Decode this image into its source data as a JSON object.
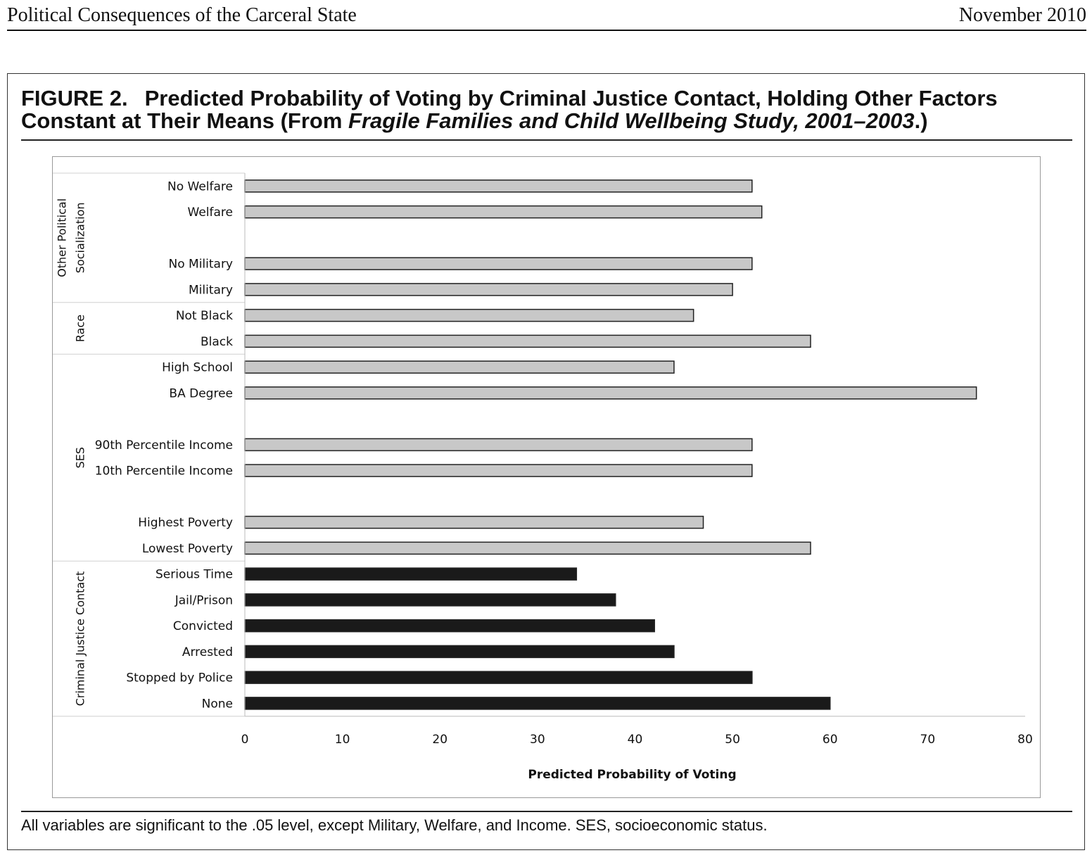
{
  "header": {
    "running_title": "Political Consequences of the Carceral State",
    "date": "November 2010"
  },
  "figure": {
    "number": "FIGURE 2.",
    "title_part1": "Predicted Probability of Voting by Criminal Justice Contact, Holding Other Factors Constant at Their Means (From ",
    "title_italic": "Fragile Families and Child Wellbeing Study, 2001–2003",
    "title_part2": ".)",
    "caption": "All variables are significant to the .05 level, except Military, Welfare, and Income. SES, socioeconomic status."
  },
  "colors": {
    "light_bar": "#c8c8c8",
    "dark_bar": "#1a1a1a",
    "bar_outline": "#222222"
  },
  "chart_data": {
    "type": "bar",
    "orientation": "horizontal",
    "xlabel": "Predicted Probability of Voting",
    "xlim": [
      0,
      80
    ],
    "xticks": [
      0,
      10,
      20,
      30,
      40,
      50,
      60,
      70,
      80
    ],
    "grid": false,
    "groups": [
      {
        "name": "Other Political Socialization",
        "label_lines": [
          "Other Political",
          "Socialization"
        ],
        "rows": [
          {
            "label": "No Welfare",
            "value": 52,
            "style": "light"
          },
          {
            "label": "Welfare",
            "value": 53,
            "style": "light"
          },
          {
            "label": "",
            "value": null,
            "style": "gap"
          },
          {
            "label": "No Military",
            "value": 52,
            "style": "light"
          },
          {
            "label": "Military",
            "value": 50,
            "style": "light"
          }
        ]
      },
      {
        "name": "Race",
        "label_lines": [
          "Race"
        ],
        "rows": [
          {
            "label": "Not Black",
            "value": 46,
            "style": "light"
          },
          {
            "label": "Black",
            "value": 58,
            "style": "light"
          }
        ]
      },
      {
        "name": "SES",
        "label_lines": [
          "SES"
        ],
        "rows": [
          {
            "label": "High School",
            "value": 44,
            "style": "light"
          },
          {
            "label": "BA Degree",
            "value": 75,
            "style": "light"
          },
          {
            "label": "",
            "value": null,
            "style": "gap"
          },
          {
            "label": "90th Percentile Income",
            "value": 52,
            "style": "light"
          },
          {
            "label": "10th Percentile Income",
            "value": 52,
            "style": "light"
          },
          {
            "label": "",
            "value": null,
            "style": "gap"
          },
          {
            "label": "Highest Poverty",
            "value": 47,
            "style": "light"
          },
          {
            "label": "Lowest Poverty",
            "value": 58,
            "style": "light"
          }
        ]
      },
      {
        "name": "Criminal Justice Contact",
        "label_lines": [
          "Criminal  Justice Contact"
        ],
        "rows": [
          {
            "label": "Serious Time",
            "value": 34,
            "style": "dark"
          },
          {
            "label": "Jail/Prison",
            "value": 38,
            "style": "dark"
          },
          {
            "label": "Convicted",
            "value": 42,
            "style": "dark"
          },
          {
            "label": "Arrested",
            "value": 44,
            "style": "dark"
          },
          {
            "label": "Stopped by Police",
            "value": 52,
            "style": "dark"
          },
          {
            "label": "None",
            "value": 60,
            "style": "dark"
          }
        ]
      }
    ]
  }
}
